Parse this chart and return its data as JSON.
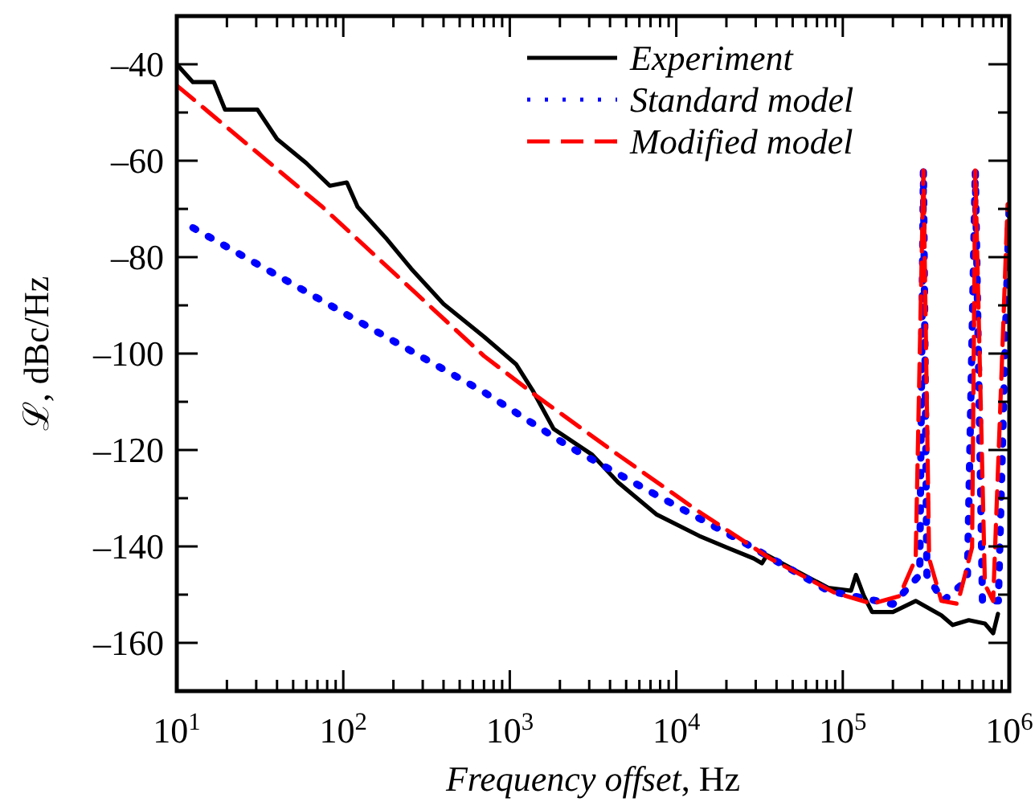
{
  "chart_data": {
    "type": "line",
    "xlabel": "Frequency offset, Hz",
    "ylabel": "ℒ, dBc/Hz",
    "log": "x",
    "xlim": [
      10,
      1000000
    ],
    "ylim": [
      -170,
      -30
    ],
    "xticks": [
      {
        "value": 10,
        "label": "10$^{1}$"
      },
      {
        "value": 20,
        "label": null
      },
      {
        "value": 30,
        "label": null
      },
      {
        "value": 40,
        "label": null
      },
      {
        "value": 50,
        "label": null
      },
      {
        "value": 60,
        "label": null
      },
      {
        "value": 70,
        "label": null
      },
      {
        "value": 80,
        "label": null
      },
      {
        "value": 90,
        "label": null
      },
      {
        "value": 100,
        "label": "10$^{2}$"
      },
      {
        "value": 200,
        "label": null
      },
      {
        "value": 300,
        "label": null
      },
      {
        "value": 400,
        "label": null
      },
      {
        "value": 500,
        "label": null
      },
      {
        "value": 600,
        "label": null
      },
      {
        "value": 700,
        "label": null
      },
      {
        "value": 800,
        "label": null
      },
      {
        "value": 900,
        "label": null
      },
      {
        "value": 1000,
        "label": "10$^{3}$"
      },
      {
        "value": 2000,
        "label": null
      },
      {
        "value": 3000,
        "label": null
      },
      {
        "value": 4000,
        "label": null
      },
      {
        "value": 5000,
        "label": null
      },
      {
        "value": 6000,
        "label": null
      },
      {
        "value": 7000,
        "label": null
      },
      {
        "value": 8000,
        "label": null
      },
      {
        "value": 9000,
        "label": null
      },
      {
        "value": 10000,
        "label": "10$^{4}$"
      },
      {
        "value": 20000,
        "label": null
      },
      {
        "value": 30000,
        "label": null
      },
      {
        "value": 40000,
        "label": null
      },
      {
        "value": 50000,
        "label": null
      },
      {
        "value": 60000,
        "label": null
      },
      {
        "value": 70000,
        "label": null
      },
      {
        "value": 80000,
        "label": null
      },
      {
        "value": 90000,
        "label": null
      },
      {
        "value": 100000,
        "label": "10$^{5}$"
      },
      {
        "value": 200000,
        "label": null
      },
      {
        "value": 300000,
        "label": null
      },
      {
        "value": 400000,
        "label": null
      },
      {
        "value": 500000,
        "label": null
      },
      {
        "value": 600000,
        "label": null
      },
      {
        "value": 700000,
        "label": null
      },
      {
        "value": 800000,
        "label": null
      },
      {
        "value": 900000,
        "label": null
      },
      {
        "value": 1000000,
        "label": "10$^{6}$"
      }
    ],
    "yticks": [
      {
        "value": -160,
        "label": "–160"
      },
      {
        "value": -150,
        "label": null
      },
      {
        "value": -140,
        "label": "–140"
      },
      {
        "value": -130,
        "label": null
      },
      {
        "value": -120,
        "label": "–120"
      },
      {
        "value": -110,
        "label": null
      },
      {
        "value": -100,
        "label": "–100"
      },
      {
        "value": -90,
        "label": null
      },
      {
        "value": -80,
        "label": "–80"
      },
      {
        "value": -70,
        "label": null
      },
      {
        "value": -60,
        "label": "–60"
      },
      {
        "value": -50,
        "label": null
      },
      {
        "value": -40,
        "label": "–40"
      }
    ],
    "legend": "top right",
    "series": [
      {
        "name": "Experiment",
        "color": "#000000",
        "line_style": "solid",
        "x": [
          10,
          12.5,
          16.7,
          19.5,
          30.5,
          40,
          60,
          83,
          105,
          122,
          183,
          256,
          400,
          700,
          1090,
          1370,
          1830,
          3130,
          4470,
          7640,
          13700,
          20000,
          29200,
          32700,
          35000,
          48900,
          81800,
          112000,
          120000,
          134000,
          150000,
          200000,
          274000,
          391000,
          457000,
          571000,
          714000,
          800000,
          855000
        ],
        "values": [
          -40,
          -43.7,
          -43.7,
          -49.4,
          -49.4,
          -55.5,
          -60.5,
          -65.2,
          -64.5,
          -69.6,
          -76.3,
          -82.4,
          -89.7,
          -96.5,
          -102.2,
          -107.6,
          -115.6,
          -121,
          -126.7,
          -133.4,
          -137.8,
          -140.2,
          -142.5,
          -143.5,
          -141.8,
          -144.5,
          -148.6,
          -149.2,
          -145.9,
          -150.3,
          -153.6,
          -153.6,
          -151.3,
          -154.3,
          -156.3,
          -155.3,
          -156,
          -158,
          -154
        ]
      },
      {
        "name": "Standard model",
        "color": "#0000ff",
        "line_style": "dotted",
        "x": [
          12.5,
          700,
          2270,
          7640,
          25500,
          81800,
          200000,
          290000,
          305000,
          320000,
          400000,
          560000,
          625000,
          690000,
          860000,
          930000,
          1000000
        ],
        "values": [
          -73.9,
          -108,
          -119.3,
          -129.4,
          -139.2,
          -149.2,
          -152,
          -145.9,
          -62,
          -145.9,
          -151.3,
          -146.9,
          -62,
          -151.3,
          -151.3,
          -106.6,
          -68.6
        ]
      },
      {
        "name": "Modified model",
        "color": "#ff0000",
        "line_style": "dashed",
        "x": [
          10,
          75,
          700,
          1460,
          4470,
          13700,
          36600,
          89300,
          150000,
          219000,
          274000,
          305000,
          330000,
          391000,
          489000,
          598000,
          625000,
          714000,
          800000,
          893000,
          977000
        ],
        "values": [
          -44.4,
          -69.6,
          -100.5,
          -108.9,
          -121,
          -132.8,
          -142.5,
          -149.6,
          -151.9,
          -150.3,
          -142.5,
          -62,
          -142.5,
          -151.3,
          -151.9,
          -140.2,
          -62,
          -147.9,
          -151.3,
          -106.6,
          -69
        ]
      }
    ]
  }
}
